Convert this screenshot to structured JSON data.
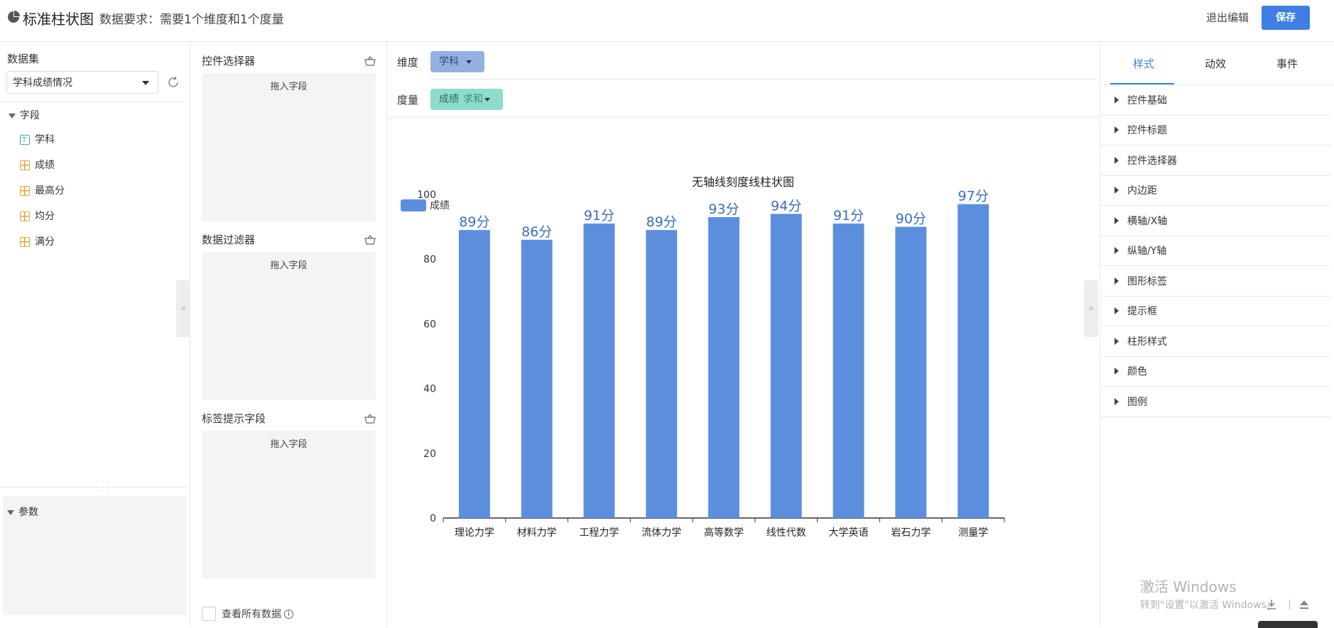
{
  "header": {
    "chart_type": "标准柱状图",
    "requirement": "数据要求：需要1个维度和1个度量",
    "exit_label": "退出编辑",
    "save_label": "保存"
  },
  "dataset_panel": {
    "title": "数据集",
    "selected_dataset": "学科成绩情况",
    "fields_header": "字段",
    "fields": [
      {
        "name": "学科",
        "kind": "text"
      },
      {
        "name": "成绩",
        "kind": "number"
      },
      {
        "name": "最高分",
        "kind": "number"
      },
      {
        "name": "均分",
        "kind": "number"
      },
      {
        "name": "满分",
        "kind": "number"
      }
    ],
    "params_header": "参数"
  },
  "control_panel": {
    "sections": [
      {
        "title": "控件选择器",
        "drop_hint": "拖入字段"
      },
      {
        "title": "数据过滤器",
        "drop_hint": "拖入字段"
      },
      {
        "title": "标签提示字段",
        "drop_hint": "拖入字段"
      }
    ],
    "view_all_label": "查看所有数据"
  },
  "shelves": {
    "dimension_label": "维度",
    "dimension_pill": "学科",
    "measure_label": "度量",
    "measure_pill": "成绩",
    "measure_agg": "求和"
  },
  "chart_data": {
    "type": "bar",
    "title": "无轴线刻度线柱状图",
    "categories": [
      "理论力学",
      "材料力学",
      "工程力学",
      "流体力学",
      "高等数学",
      "线性代数",
      "大学英语",
      "岩石力学",
      "测量学"
    ],
    "series": [
      {
        "name": "成绩",
        "values": [
          89,
          86,
          91,
          89,
          93,
          94,
          91,
          90,
          97
        ]
      }
    ],
    "data_labels": [
      "89分",
      "86分",
      "91分",
      "89分",
      "93分",
      "94分",
      "91分",
      "90分",
      "97分"
    ],
    "ylim": [
      0,
      100
    ],
    "yticks": [
      0,
      20,
      40,
      60,
      80,
      100
    ],
    "legend_position": "top-left",
    "bar_color": "#5b8fdd",
    "label_color": "#3b6db8",
    "grid": false
  },
  "style_panel": {
    "tabs": [
      "样式",
      "动效",
      "事件"
    ],
    "active_tab": "样式",
    "sections": [
      "控件基础",
      "控件标题",
      "控件选择器",
      "内边距",
      "横轴/X轴",
      "纵轴/Y轴",
      "图形标签",
      "提示框",
      "柱形样式",
      "颜色",
      "图例"
    ]
  },
  "watermark": {
    "line1": "激活 Windows",
    "line2": "转到\"设置\"以激活 Windows。"
  },
  "accent_color": "#3f7fe3"
}
